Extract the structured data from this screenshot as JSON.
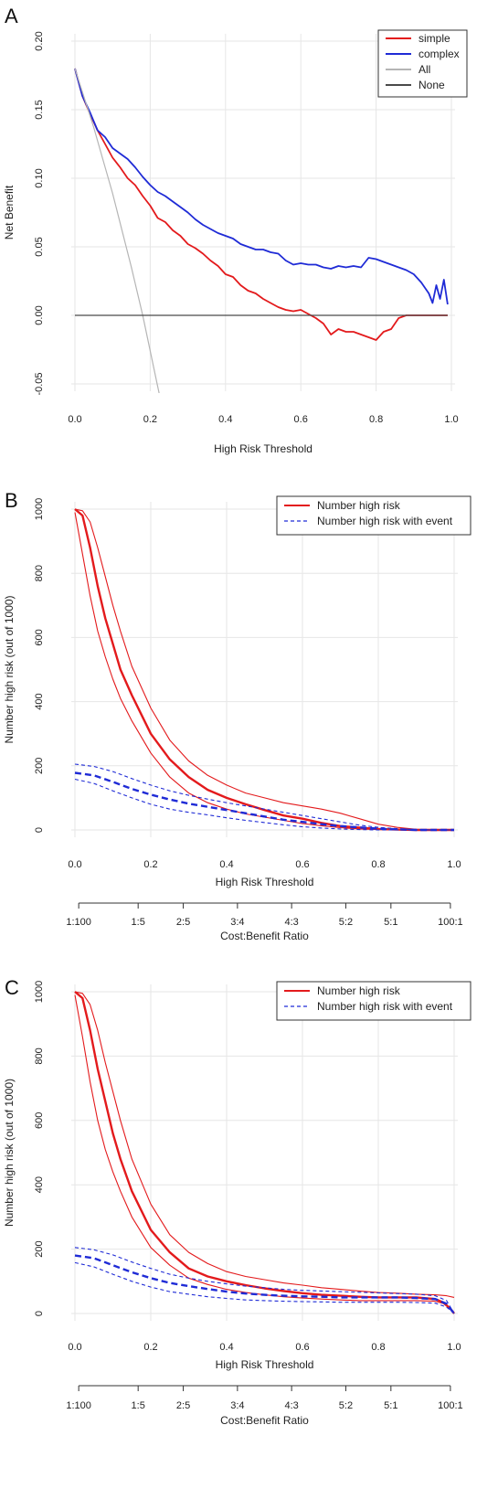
{
  "panels": [
    {
      "letter": "A"
    },
    {
      "letter": "B"
    },
    {
      "letter": "C"
    }
  ],
  "colors": {
    "red": "#e31a1c",
    "blue": "#1f2bd6",
    "gray_light": "#b5b5b5",
    "gray_dark": "#4a4a4a",
    "grid": "#e6e6e6"
  },
  "chart_data": [
    {
      "type": "line",
      "panel": "A",
      "xlabel": "High Risk Threshold",
      "ylabel": "Net Benefit",
      "xlim": [
        0,
        1
      ],
      "ylim": [
        -0.05,
        0.2
      ],
      "x_ticks": [
        "0.0",
        "0.2",
        "0.4",
        "0.6",
        "0.8",
        "1.0"
      ],
      "y_ticks": [
        "-0.05",
        "0.00",
        "0.05",
        "0.10",
        "0.15",
        "0.20"
      ],
      "grid": true,
      "legend_position": "top-right",
      "series": [
        {
          "name": "simple",
          "color": "#e31a1c",
          "x": [
            0,
            0.02,
            0.04,
            0.06,
            0.08,
            0.1,
            0.12,
            0.14,
            0.16,
            0.18,
            0.2,
            0.22,
            0.24,
            0.26,
            0.28,
            0.3,
            0.32,
            0.34,
            0.36,
            0.38,
            0.4,
            0.42,
            0.44,
            0.46,
            0.48,
            0.5,
            0.52,
            0.54,
            0.56,
            0.58,
            0.6,
            0.62,
            0.64,
            0.66,
            0.68,
            0.7,
            0.72,
            0.74,
            0.76,
            0.78,
            0.8,
            0.82,
            0.84,
            0.86,
            0.88,
            0.9,
            0.92,
            0.94,
            0.96,
            0.98,
            0.99
          ],
          "y": [
            0.18,
            0.16,
            0.147,
            0.135,
            0.125,
            0.115,
            0.108,
            0.1,
            0.095,
            0.087,
            0.08,
            0.071,
            0.068,
            0.062,
            0.058,
            0.052,
            0.049,
            0.045,
            0.04,
            0.036,
            0.03,
            0.028,
            0.022,
            0.018,
            0.016,
            0.012,
            0.009,
            0.006,
            0.004,
            0.003,
            0.004,
            0.001,
            -0.002,
            -0.006,
            -0.014,
            -0.01,
            -0.012,
            -0.012,
            -0.014,
            -0.016,
            -0.018,
            -0.012,
            -0.01,
            -0.002,
            0,
            0,
            0,
            0,
            0,
            0,
            0
          ]
        },
        {
          "name": "complex",
          "color": "#1f2bd6",
          "x": [
            0,
            0.02,
            0.04,
            0.06,
            0.08,
            0.1,
            0.12,
            0.14,
            0.16,
            0.18,
            0.2,
            0.22,
            0.24,
            0.26,
            0.28,
            0.3,
            0.32,
            0.34,
            0.36,
            0.38,
            0.4,
            0.42,
            0.44,
            0.46,
            0.48,
            0.5,
            0.52,
            0.54,
            0.56,
            0.58,
            0.6,
            0.62,
            0.64,
            0.66,
            0.68,
            0.7,
            0.72,
            0.74,
            0.76,
            0.78,
            0.8,
            0.82,
            0.84,
            0.86,
            0.88,
            0.9,
            0.92,
            0.94,
            0.95,
            0.96,
            0.97,
            0.98,
            0.99
          ],
          "y": [
            0.18,
            0.16,
            0.148,
            0.135,
            0.13,
            0.122,
            0.118,
            0.114,
            0.108,
            0.101,
            0.095,
            0.09,
            0.087,
            0.083,
            0.079,
            0.075,
            0.07,
            0.066,
            0.063,
            0.06,
            0.058,
            0.056,
            0.052,
            0.05,
            0.048,
            0.048,
            0.046,
            0.045,
            0.04,
            0.037,
            0.038,
            0.037,
            0.037,
            0.035,
            0.034,
            0.036,
            0.035,
            0.036,
            0.035,
            0.042,
            0.041,
            0.039,
            0.037,
            0.035,
            0.033,
            0.03,
            0.024,
            0.016,
            0.009,
            0.022,
            0.012,
            0.026,
            0.008
          ]
        },
        {
          "name": "All",
          "color": "#b5b5b5",
          "x": [
            0,
            0.05,
            0.1,
            0.15,
            0.18,
            0.22,
            0.23
          ],
          "y": [
            0.18,
            0.137,
            0.089,
            0.035,
            0.0,
            -0.052,
            -0.065
          ]
        },
        {
          "name": "None",
          "color": "#4a4a4a",
          "x": [
            0,
            0.99
          ],
          "y": [
            0,
            0
          ]
        }
      ]
    },
    {
      "type": "line",
      "panel": "B",
      "xlabel": "High Risk Threshold",
      "ylabel": "Number high risk (out of 1000)",
      "x2label": "Cost:Benefit Ratio",
      "xlim": [
        0,
        1
      ],
      "ylim": [
        0,
        1000
      ],
      "x_ticks": [
        "0.0",
        "0.2",
        "0.4",
        "0.6",
        "0.8",
        "1.0"
      ],
      "y_ticks": [
        "0",
        "200",
        "400",
        "600",
        "800",
        "1000"
      ],
      "ratio_ticks": [
        {
          "label": "1:100",
          "x": 0.01
        },
        {
          "label": "1:5",
          "x": 0.1667
        },
        {
          "label": "2:5",
          "x": 0.2857
        },
        {
          "label": "3:4",
          "x": 0.4286
        },
        {
          "label": "4:3",
          "x": 0.5714
        },
        {
          "label": "5:2",
          "x": 0.7143
        },
        {
          "label": "5:1",
          "x": 0.8333
        },
        {
          "label": "100:1",
          "x": 0.9901
        }
      ],
      "grid": true,
      "legend_position": "top-right",
      "series": [
        {
          "name": "Number high risk",
          "role": "main",
          "color": "#e31a1c",
          "style": "solid-thick",
          "x": [
            0,
            0.02,
            0.04,
            0.06,
            0.08,
            0.1,
            0.12,
            0.15,
            0.2,
            0.25,
            0.3,
            0.35,
            0.4,
            0.45,
            0.5,
            0.55,
            0.6,
            0.65,
            0.7,
            0.75,
            0.8,
            0.85,
            0.9,
            0.95,
            1.0
          ],
          "y": [
            1000,
            980,
            880,
            760,
            660,
            580,
            500,
            420,
            300,
            220,
            165,
            125,
            100,
            80,
            62,
            45,
            35,
            22,
            12,
            7,
            3,
            1,
            0,
            0,
            0
          ]
        },
        {
          "name": "",
          "role": "upper",
          "color": "#e31a1c",
          "style": "solid-thin",
          "x": [
            0,
            0.02,
            0.04,
            0.06,
            0.08,
            0.1,
            0.12,
            0.15,
            0.2,
            0.25,
            0.3,
            0.35,
            0.4,
            0.45,
            0.5,
            0.55,
            0.6,
            0.65,
            0.7,
            0.75,
            0.8,
            0.85,
            0.9,
            0.95,
            1.0
          ],
          "y": [
            1000,
            995,
            960,
            880,
            790,
            700,
            620,
            510,
            380,
            280,
            215,
            170,
            140,
            115,
            100,
            85,
            75,
            65,
            52,
            35,
            18,
            8,
            2,
            0,
            0
          ]
        },
        {
          "name": "",
          "role": "lower",
          "color": "#e31a1c",
          "style": "solid-thin",
          "x": [
            0,
            0.02,
            0.04,
            0.06,
            0.08,
            0.1,
            0.12,
            0.15,
            0.2,
            0.25,
            0.3,
            0.35,
            0.4,
            0.45,
            0.5,
            0.55,
            0.6,
            0.65,
            0.7,
            0.75,
            0.8,
            0.85,
            0.9,
            0.95,
            1.0
          ],
          "y": [
            990,
            860,
            730,
            620,
            540,
            470,
            410,
            340,
            240,
            165,
            115,
            85,
            65,
            50,
            40,
            30,
            20,
            13,
            7,
            3,
            1,
            0,
            0,
            0,
            0
          ]
        },
        {
          "name": "Number high risk with event",
          "role": "main",
          "color": "#1f2bd6",
          "style": "dashed-thick",
          "x": [
            0,
            0.05,
            0.1,
            0.15,
            0.2,
            0.25,
            0.3,
            0.35,
            0.4,
            0.45,
            0.5,
            0.55,
            0.6,
            0.65,
            0.7,
            0.75,
            0.8,
            0.85,
            0.9,
            0.95,
            1.0
          ],
          "y": [
            178,
            170,
            150,
            128,
            110,
            95,
            82,
            72,
            62,
            52,
            42,
            32,
            25,
            18,
            12,
            8,
            4,
            2,
            0,
            0,
            0
          ]
        },
        {
          "name": "",
          "role": "upper",
          "color": "#1f2bd6",
          "style": "dashed-thin",
          "x": [
            0,
            0.05,
            0.1,
            0.15,
            0.2,
            0.25,
            0.3,
            0.35,
            0.4,
            0.45,
            0.5,
            0.55,
            0.6,
            0.65,
            0.7,
            0.75,
            0.8,
            0.85,
            0.9,
            0.95,
            1.0
          ],
          "y": [
            205,
            198,
            182,
            160,
            140,
            122,
            108,
            96,
            85,
            75,
            65,
            55,
            45,
            35,
            25,
            15,
            8,
            4,
            1,
            0,
            0
          ]
        },
        {
          "name": "",
          "role": "lower",
          "color": "#1f2bd6",
          "style": "dashed-thin",
          "x": [
            0,
            0.05,
            0.1,
            0.15,
            0.2,
            0.25,
            0.3,
            0.35,
            0.4,
            0.45,
            0.5,
            0.55,
            0.6,
            0.65,
            0.7,
            0.75,
            0.8,
            0.85,
            0.9,
            0.95,
            1.0
          ],
          "y": [
            158,
            145,
            122,
            100,
            80,
            65,
            55,
            47,
            38,
            30,
            23,
            16,
            10,
            6,
            3,
            1,
            0,
            0,
            0,
            0,
            0
          ]
        }
      ]
    },
    {
      "type": "line",
      "panel": "C",
      "xlabel": "High Risk Threshold",
      "ylabel": "Number high risk (out of 1000)",
      "x2label": "Cost:Benefit Ratio",
      "xlim": [
        0,
        1
      ],
      "ylim": [
        0,
        1000
      ],
      "x_ticks": [
        "0.0",
        "0.2",
        "0.4",
        "0.6",
        "0.8",
        "1.0"
      ],
      "y_ticks": [
        "0",
        "200",
        "400",
        "600",
        "800",
        "1000"
      ],
      "ratio_ticks": [
        {
          "label": "1:100",
          "x": 0.01
        },
        {
          "label": "1:5",
          "x": 0.1667
        },
        {
          "label": "2:5",
          "x": 0.2857
        },
        {
          "label": "3:4",
          "x": 0.4286
        },
        {
          "label": "4:3",
          "x": 0.5714
        },
        {
          "label": "5:2",
          "x": 0.7143
        },
        {
          "label": "5:1",
          "x": 0.8333
        },
        {
          "label": "100:1",
          "x": 0.9901
        }
      ],
      "grid": true,
      "legend_position": "top-right",
      "series": [
        {
          "name": "Number high risk",
          "role": "main",
          "color": "#e31a1c",
          "style": "solid-thick",
          "x": [
            0,
            0.02,
            0.04,
            0.06,
            0.08,
            0.1,
            0.12,
            0.15,
            0.2,
            0.25,
            0.3,
            0.35,
            0.4,
            0.45,
            0.5,
            0.55,
            0.6,
            0.65,
            0.7,
            0.75,
            0.8,
            0.85,
            0.9,
            0.95,
            0.97,
            0.99,
            1.0
          ],
          "y": [
            1000,
            980,
            880,
            760,
            660,
            560,
            480,
            380,
            260,
            190,
            140,
            115,
            100,
            88,
            78,
            70,
            63,
            58,
            55,
            52,
            50,
            50,
            50,
            45,
            35,
            15,
            0
          ]
        },
        {
          "name": "",
          "role": "upper",
          "color": "#e31a1c",
          "style": "solid-thin",
          "x": [
            0,
            0.02,
            0.04,
            0.06,
            0.08,
            0.1,
            0.12,
            0.15,
            0.2,
            0.25,
            0.3,
            0.35,
            0.4,
            0.45,
            0.5,
            0.55,
            0.6,
            0.65,
            0.7,
            0.75,
            0.8,
            0.85,
            0.9,
            0.95,
            0.98,
            1.0
          ],
          "y": [
            1000,
            995,
            960,
            880,
            780,
            690,
            600,
            480,
            340,
            245,
            190,
            155,
            130,
            115,
            105,
            95,
            88,
            80,
            75,
            70,
            65,
            63,
            60,
            58,
            55,
            50
          ]
        },
        {
          "name": "",
          "role": "lower",
          "color": "#e31a1c",
          "style": "solid-thin",
          "x": [
            0,
            0.02,
            0.04,
            0.06,
            0.08,
            0.1,
            0.12,
            0.15,
            0.2,
            0.25,
            0.3,
            0.35,
            0.4,
            0.45,
            0.5,
            0.55,
            0.6,
            0.65,
            0.7,
            0.75,
            0.8,
            0.85,
            0.9,
            0.95,
            0.98,
            1.0
          ],
          "y": [
            990,
            860,
            720,
            600,
            510,
            440,
            380,
            300,
            205,
            150,
            110,
            90,
            75,
            65,
            58,
            52,
            48,
            45,
            42,
            40,
            40,
            40,
            40,
            38,
            28,
            0
          ]
        },
        {
          "name": "Number high risk with event",
          "role": "main",
          "color": "#1f2bd6",
          "style": "dashed-thick",
          "x": [
            0,
            0.05,
            0.1,
            0.15,
            0.2,
            0.25,
            0.3,
            0.35,
            0.4,
            0.45,
            0.5,
            0.55,
            0.6,
            0.65,
            0.7,
            0.75,
            0.8,
            0.85,
            0.9,
            0.95,
            0.98,
            1.0
          ],
          "y": [
            180,
            172,
            150,
            128,
            110,
            95,
            85,
            76,
            68,
            62,
            58,
            55,
            53,
            52,
            50,
            50,
            50,
            50,
            48,
            45,
            30,
            0
          ]
        },
        {
          "name": "",
          "role": "upper",
          "color": "#1f2bd6",
          "style": "dashed-thin",
          "x": [
            0,
            0.05,
            0.1,
            0.15,
            0.2,
            0.25,
            0.3,
            0.35,
            0.4,
            0.45,
            0.5,
            0.55,
            0.6,
            0.65,
            0.7,
            0.75,
            0.8,
            0.85,
            0.9,
            0.95,
            0.98,
            1.0
          ],
          "y": [
            205,
            198,
            182,
            160,
            140,
            122,
            110,
            100,
            92,
            85,
            80,
            75,
            72,
            70,
            68,
            66,
            64,
            62,
            60,
            55,
            40,
            0
          ]
        },
        {
          "name": "",
          "role": "lower",
          "color": "#1f2bd6",
          "style": "dashed-thin",
          "x": [
            0,
            0.05,
            0.1,
            0.15,
            0.2,
            0.25,
            0.3,
            0.35,
            0.4,
            0.45,
            0.5,
            0.55,
            0.6,
            0.65,
            0.7,
            0.75,
            0.8,
            0.85,
            0.9,
            0.95,
            0.98,
            1.0
          ],
          "y": [
            158,
            145,
            122,
            100,
            82,
            68,
            60,
            52,
            47,
            42,
            40,
            38,
            37,
            36,
            35,
            35,
            35,
            35,
            34,
            32,
            20,
            0
          ]
        }
      ]
    }
  ]
}
